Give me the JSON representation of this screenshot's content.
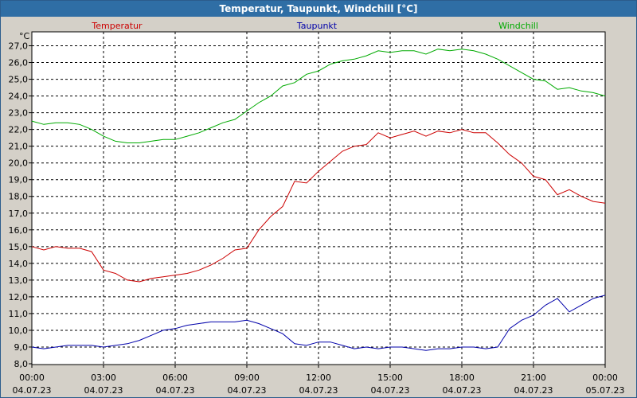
{
  "window": {
    "title": "Temperatur, Taupunkt, Windchill [°C]"
  },
  "chart_data": {
    "type": "line",
    "title": "Temperatur, Taupunkt, Windchill [°C]",
    "ylabel": "°C",
    "ylim": [
      8.0,
      27.5
    ],
    "yticks": [
      "8,0",
      "9,0",
      "10,0",
      "11,0",
      "12,0",
      "13,0",
      "14,0",
      "15,0",
      "16,0",
      "17,0",
      "18,0",
      "19,0",
      "20,0",
      "21,0",
      "22,0",
      "23,0",
      "24,0",
      "25,0",
      "26,0",
      "27,0"
    ],
    "xlim": [
      0,
      24
    ],
    "xticks": [
      {
        "time": "00:00",
        "date": "04.07.23"
      },
      {
        "time": "03:00",
        "date": "04.07.23"
      },
      {
        "time": "06:00",
        "date": "04.07.23"
      },
      {
        "time": "09:00",
        "date": "04.07.23"
      },
      {
        "time": "12:00",
        "date": "04.07.23"
      },
      {
        "time": "15:00",
        "date": "04.07.23"
      },
      {
        "time": "18:00",
        "date": "04.07.23"
      },
      {
        "time": "21:00",
        "date": "04.07.23"
      },
      {
        "time": "00:00",
        "date": "05.07.23"
      }
    ],
    "grid": true,
    "legend_position": "top",
    "x": [
      0,
      0.5,
      1,
      1.5,
      2,
      2.5,
      3,
      3.5,
      4,
      4.5,
      5,
      5.5,
      6,
      6.5,
      7,
      7.5,
      8,
      8.5,
      9,
      9.5,
      10,
      10.5,
      11,
      11.5,
      12,
      12.5,
      13,
      13.5,
      14,
      14.5,
      15,
      15.5,
      16,
      16.5,
      17,
      17.5,
      18,
      18.5,
      19,
      19.5,
      20,
      20.5,
      21,
      21.5,
      22,
      22.5,
      23,
      23.5,
      24
    ],
    "series": [
      {
        "name": "Temperatur",
        "color": "#cc0000",
        "values": [
          15.0,
          14.8,
          15.0,
          14.9,
          14.9,
          14.7,
          13.6,
          13.4,
          13.0,
          12.9,
          13.1,
          13.2,
          13.3,
          13.4,
          13.6,
          13.9,
          14.3,
          14.8,
          14.9,
          16.0,
          16.8,
          17.4,
          18.9,
          18.8,
          19.5,
          20.1,
          20.7,
          21.0,
          21.1,
          21.8,
          21.5,
          21.7,
          21.9,
          21.6,
          21.9,
          21.8,
          22.0,
          21.8,
          21.8,
          21.2,
          20.5,
          20.0,
          19.2,
          19.0,
          18.1,
          18.4,
          18.0,
          17.7,
          17.6
        ]
      },
      {
        "name": "Taupunkt",
        "color": "#0000aa",
        "values": [
          9.0,
          8.9,
          9.0,
          9.1,
          9.1,
          9.1,
          9.0,
          9.1,
          9.2,
          9.4,
          9.7,
          10.0,
          10.1,
          10.3,
          10.4,
          10.5,
          10.5,
          10.5,
          10.6,
          10.4,
          10.1,
          9.8,
          9.2,
          9.1,
          9.3,
          9.3,
          9.1,
          8.9,
          9.0,
          8.9,
          9.0,
          9.0,
          8.9,
          8.8,
          8.9,
          8.9,
          9.0,
          9.0,
          8.9,
          9.0,
          10.1,
          10.6,
          10.9,
          11.5,
          11.9,
          11.1,
          11.5,
          11.9,
          12.1
        ]
      },
      {
        "name": "Windchill",
        "color": "#00aa00",
        "values": [
          22.5,
          22.3,
          22.4,
          22.4,
          22.3,
          22.0,
          21.6,
          21.3,
          21.2,
          21.2,
          21.3,
          21.4,
          21.4,
          21.6,
          21.8,
          22.1,
          22.4,
          22.6,
          23.1,
          23.6,
          24.0,
          24.6,
          24.8,
          25.3,
          25.5,
          25.9,
          26.1,
          26.2,
          26.4,
          26.7,
          26.6,
          26.7,
          26.7,
          26.5,
          26.8,
          26.7,
          26.8,
          26.7,
          26.5,
          26.2,
          25.8,
          25.4,
          25.0,
          24.9,
          24.4,
          24.5,
          24.3,
          24.2,
          24.0
        ]
      }
    ]
  }
}
